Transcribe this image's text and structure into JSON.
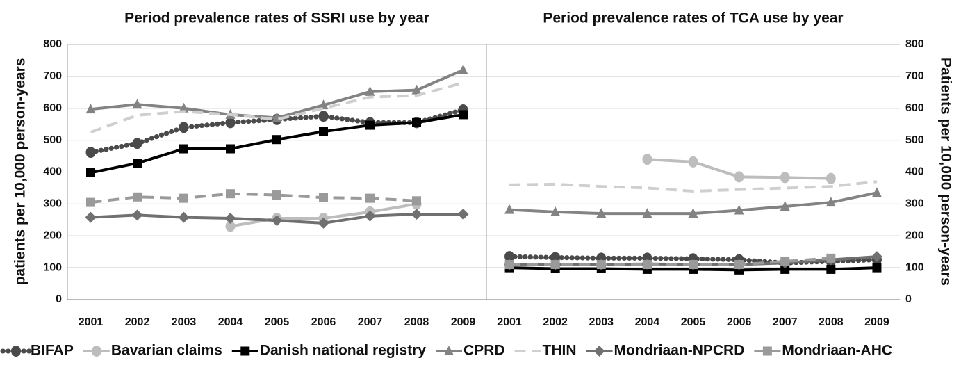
{
  "chart_data": [
    {
      "type": "line",
      "title": "Period prevalence rates of  SSRI use by year",
      "y_label": "patients  per 10,000 person-years",
      "y_axis_side": "left",
      "categories": [
        "2001",
        "2002",
        "2003",
        "2004",
        "2005",
        "2006",
        "2007",
        "2008",
        "2009"
      ],
      "ylim": [
        0,
        800
      ],
      "yticks": [
        0,
        100,
        200,
        300,
        400,
        500,
        600,
        700,
        800
      ],
      "grid": true,
      "series": [
        {
          "name": "BIFAP",
          "color": "#4a4a4a",
          "dash": "dotted",
          "marker": "circle",
          "values": [
            462,
            490,
            540,
            555,
            565,
            575,
            555,
            555,
            595
          ]
        },
        {
          "name": "Bavarian claims",
          "color": "#bdbdbd",
          "dash": "solid",
          "marker": "circle",
          "values": [
            null,
            null,
            null,
            230,
            255,
            255,
            275,
            300,
            null
          ]
        },
        {
          "name": "Danish national registry",
          "color": "#000000",
          "dash": "solid",
          "marker": "square",
          "values": [
            398,
            428,
            473,
            473,
            502,
            527,
            547,
            555,
            580
          ]
        },
        {
          "name": "CPRD",
          "color": "#838383",
          "dash": "solid",
          "marker": "triangle",
          "values": [
            597,
            612,
            600,
            580,
            570,
            610,
            652,
            657,
            720
          ]
        },
        {
          "name": "THIN",
          "color": "#cfcfcf",
          "dash": "dashed",
          "marker": "none",
          "values": [
            525,
            578,
            590,
            580,
            565,
            600,
            635,
            640,
            680
          ]
        },
        {
          "name": "Mondriaan-NPCRD",
          "color": "#707070",
          "dash": "solid",
          "marker": "diamond",
          "values": [
            258,
            265,
            258,
            255,
            248,
            240,
            262,
            268,
            268
          ]
        },
        {
          "name": "Mondriaan-AHC",
          "color": "#9a9a9a",
          "dash": "dashed",
          "marker": "square",
          "values": [
            305,
            322,
            318,
            332,
            328,
            320,
            318,
            310,
            null
          ]
        }
      ]
    },
    {
      "type": "line",
      "title": "Period prevalence rates of  TCA use by year",
      "y_label": "Patients per 10,000 person-years",
      "y_axis_side": "right",
      "categories": [
        "2001",
        "2002",
        "2003",
        "2004",
        "2005",
        "2006",
        "2007",
        "2008",
        "2009"
      ],
      "ylim": [
        0,
        800
      ],
      "yticks": [
        0,
        100,
        200,
        300,
        400,
        500,
        600,
        700,
        800
      ],
      "grid": true,
      "series": [
        {
          "color": "#4a4a4a",
          "dash": "dotted",
          "marker": "circle",
          "values": [
            135,
            132,
            130,
            130,
            128,
            125,
            115,
            120,
            125
          ]
        },
        {
          "color": "#bdbdbd",
          "dash": "solid",
          "marker": "circle",
          "values": [
            null,
            null,
            null,
            440,
            432,
            385,
            383,
            380,
            null
          ]
        },
        {
          "color": "#000000",
          "dash": "solid",
          "marker": "square",
          "values": [
            100,
            97,
            97,
            95,
            95,
            93,
            95,
            95,
            100
          ]
        },
        {
          "color": "#838383",
          "dash": "solid",
          "marker": "triangle",
          "values": [
            282,
            275,
            270,
            270,
            270,
            280,
            292,
            305,
            335
          ]
        },
        {
          "color": "#cfcfcf",
          "dash": "dashed",
          "marker": "none",
          "values": [
            360,
            362,
            355,
            350,
            340,
            345,
            350,
            355,
            370
          ]
        },
        {
          "color": "#707070",
          "dash": "solid",
          "marker": "diamond",
          "values": [
            110,
            110,
            110,
            112,
            110,
            110,
            115,
            125,
            135
          ]
        },
        {
          "color": "#9a9a9a",
          "dash": "dashed",
          "marker": "square",
          "values": [
            110,
            110,
            110,
            110,
            110,
            110,
            120,
            130,
            null
          ]
        }
      ]
    }
  ]
}
